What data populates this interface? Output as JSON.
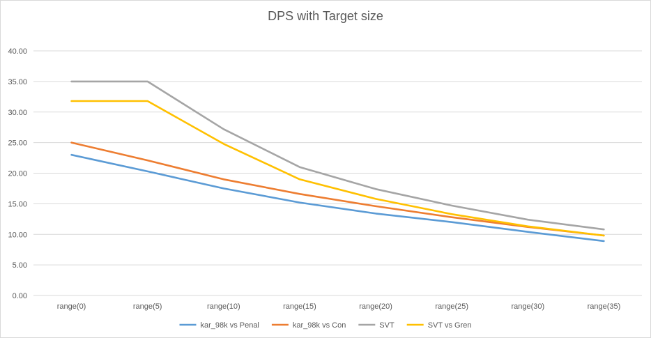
{
  "chart_data": {
    "type": "line",
    "title": "DPS with Target size",
    "xlabel": "",
    "ylabel": "",
    "categories": [
      "range(0)",
      "range(5)",
      "range(10)",
      "range(15)",
      "range(20)",
      "range(25)",
      "range(30)",
      "range(35)"
    ],
    "ylim": [
      0,
      40
    ],
    "yticks": [
      0,
      5,
      10,
      15,
      20,
      25,
      30,
      35,
      40
    ],
    "ytick_labels": [
      "0.00",
      "5.00",
      "10.00",
      "15.00",
      "20.00",
      "25.00",
      "30.00",
      "35.00",
      "40.00"
    ],
    "grid": true,
    "legend_position": "bottom",
    "series": [
      {
        "name": "kar_98k vs Penal",
        "color": "#5b9bd5",
        "values": [
          23.0,
          20.3,
          17.5,
          15.2,
          13.4,
          12.0,
          10.4,
          8.9
        ]
      },
      {
        "name": "kar_98k vs Con",
        "color": "#ed7d31",
        "values": [
          25.0,
          22.1,
          19.0,
          16.6,
          14.6,
          12.8,
          11.2,
          9.8
        ]
      },
      {
        "name": "SVT",
        "color": "#a5a5a5",
        "values": [
          35.0,
          35.0,
          27.2,
          21.0,
          17.4,
          14.7,
          12.4,
          10.8
        ]
      },
      {
        "name": "SVT vs Gren",
        "color": "#ffc000",
        "values": [
          31.8,
          31.8,
          24.8,
          19.0,
          15.8,
          13.3,
          11.3,
          9.8
        ]
      }
    ]
  }
}
